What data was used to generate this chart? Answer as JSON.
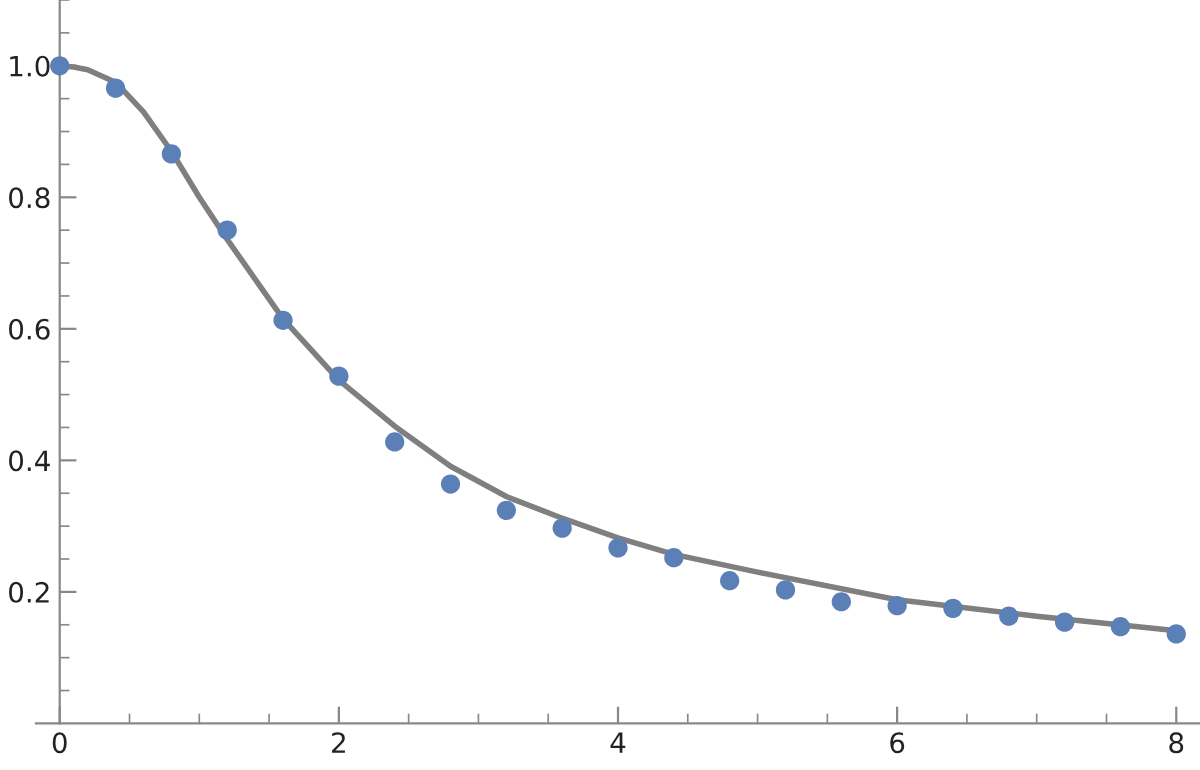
{
  "chart_data": {
    "type": "scatter",
    "x": [
      0,
      0.4,
      0.8,
      1.2,
      1.6,
      2.0,
      2.4,
      2.8,
      3.2,
      3.6,
      4.0,
      4.4,
      4.8,
      5.2,
      5.6,
      6.0,
      6.4,
      6.8,
      7.2,
      7.6,
      8.0
    ],
    "series": [
      {
        "color": "#5b80b8",
        "marker": "circle",
        "values": [
          1.0,
          0.966,
          0.866,
          0.75,
          0.613,
          0.528,
          0.428,
          0.364,
          0.324,
          0.297,
          0.267,
          0.252,
          0.217,
          0.203,
          0.185,
          0.179,
          0.175,
          0.163,
          0.154,
          0.147,
          0.136
        ]
      },
      {
        "type": "line",
        "color": "#7f7f7f",
        "marker": "none",
        "line_style": "solid",
        "x": [
          0,
          0.1,
          0.2,
          0.4,
          0.6,
          0.8,
          1.0,
          1.2,
          1.6,
          2.0,
          2.4,
          2.8,
          3.2,
          3.6,
          4.0,
          4.4,
          5.0,
          6.0,
          7.0,
          8.0
        ],
        "values": [
          1.0,
          0.998,
          0.994,
          0.975,
          0.93,
          0.87,
          0.8,
          0.736,
          0.615,
          0.522,
          0.452,
          0.391,
          0.345,
          0.312,
          0.282,
          0.257,
          0.23,
          0.188,
          0.163,
          0.141
        ]
      }
    ],
    "xlim": [
      -0.17,
      8.17
    ],
    "ylim": [
      0,
      1.1
    ],
    "xticks": [
      0,
      {
        "value": 0.5,
        "label": null
      },
      {
        "value": 1,
        "label": null
      },
      {
        "value": 1.5,
        "label": null
      },
      2,
      {
        "value": 2.5,
        "label": null
      },
      {
        "value": 3,
        "label": null
      },
      {
        "value": 3.5,
        "label": null
      },
      4,
      {
        "value": 4.5,
        "label": null
      },
      {
        "value": 5,
        "label": null
      },
      {
        "value": 5.5,
        "label": null
      },
      6,
      {
        "value": 6.5,
        "label": null
      },
      {
        "value": 7,
        "label": null
      },
      {
        "value": 7.5,
        "label": null
      },
      8
    ],
    "yticks": [
      {
        "value": 0.05,
        "label": null
      },
      {
        "value": 0.1,
        "label": null
      },
      {
        "value": 0.15,
        "label": null
      },
      0.2,
      {
        "value": 0.25,
        "label": null
      },
      {
        "value": 0.3,
        "label": null
      },
      {
        "value": 0.35,
        "label": null
      },
      0.4,
      {
        "value": 0.45,
        "label": null
      },
      {
        "value": 0.5,
        "label": null
      },
      {
        "value": 0.55,
        "label": null
      },
      0.6,
      {
        "value": 0.65,
        "label": null
      },
      {
        "value": 0.7,
        "label": null
      },
      {
        "value": 0.75,
        "label": null
      },
      0.8,
      {
        "value": 0.85,
        "label": null
      },
      {
        "value": 0.9,
        "label": null
      },
      {
        "value": 0.95,
        "label": null
      },
      {
        "value": 1.0,
        "label": "1.0"
      },
      {
        "value": 1.05,
        "label": null
      },
      {
        "value": 1.1,
        "label": null
      }
    ],
    "grid": false,
    "legend": false
  }
}
